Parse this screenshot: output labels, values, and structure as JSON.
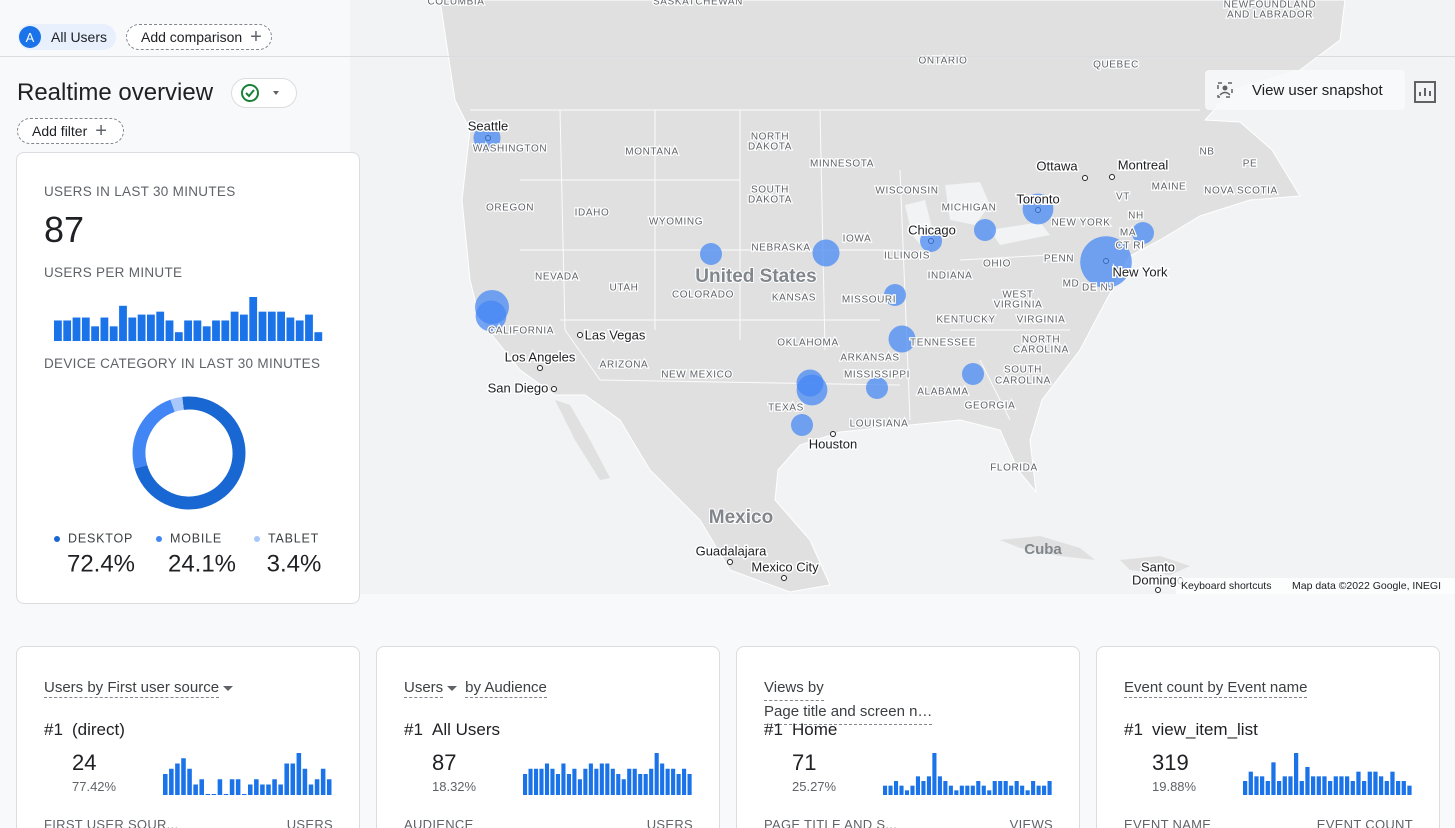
{
  "header": {
    "badge": "A",
    "segment": "All Users",
    "add_comparison": "Add comparison"
  },
  "title": "Realtime overview",
  "add_filter": "Add filter",
  "view_snapshot": "View user snapshot",
  "overview": {
    "users_label": "USERS IN LAST 30 MINUTES",
    "users": 87,
    "per_minute": {
      "type": "bar",
      "title": "USERS PER MINUTE",
      "color": "#1a73e8",
      "values": [
        7,
        7,
        8,
        8,
        5,
        8,
        5,
        12,
        8,
        9,
        9,
        10,
        7,
        3,
        7,
        7,
        5,
        7,
        7,
        10,
        9,
        15,
        10,
        10,
        10,
        8,
        7,
        9,
        3
      ]
    },
    "device": {
      "type": "pie",
      "title": "DEVICE CATEGORY IN LAST 30 MINUTES",
      "categories": [
        "DESKTOP",
        "MOBILE",
        "TABLET"
      ],
      "values": [
        72.4,
        24.1,
        3.4
      ],
      "value_labels": [
        "72.4%",
        "24.1%",
        "3.4%"
      ],
      "colors": [
        "#1967d2",
        "#4285f4",
        "#a8c7fa"
      ]
    }
  },
  "map": {
    "labels": [
      "COLUMBIA",
      "SASKATCHEWAN",
      "NEWFOUNDLAND",
      "AND LABRADOR",
      "ONTARIO",
      "QUEBEC",
      "Seattle",
      "WASHINGTON",
      "MONTANA",
      "NORTH",
      "DAKOTA",
      "MINNESOTA",
      "Ottawa",
      "Montreal",
      "NB",
      "PE",
      "WISCONSIN",
      "SOUTH",
      "DAKOTA",
      "VT",
      "MAINE",
      "NOVA SCOTIA",
      "Toronto",
      "OREGON",
      "IDAHO",
      "MICHIGAN",
      "NH",
      "WYOMING",
      "NEW YORK",
      "Chicago",
      "MA",
      "IOWA",
      "CT RI",
      "NEBRASKA",
      "ILLINOIS",
      "PENN",
      "OHIO",
      "New York",
      "NEVADA",
      "United States",
      "INDIANA",
      "MD",
      "DE NJ",
      "UTAH",
      "COLORADO",
      "WEST",
      "KANSAS",
      "MISSOURI",
      "VIRGINIA",
      "KENTUCKY",
      "VIRGINIA",
      "CALIFORNIA",
      "Las Vegas",
      "NORTH",
      "OKLAHOMA",
      "TENNESSEE",
      "CAROLINA",
      "Los Angeles",
      "ARKANSAS",
      "ARIZONA",
      "SOUTH",
      "NEW MEXICO",
      "MISSISSIPPI",
      "CAROLINA",
      "San Diego",
      "ALABAMA",
      "GEORGIA",
      "TEXAS",
      "LOUISIANA",
      "Houston",
      "FLORIDA",
      "Mexico",
      "Cuba",
      "Guadalajara",
      "Mexico City",
      "Santo",
      "Domingo"
    ],
    "bubbles": {
      "type": "scatter",
      "color": "#4285f4",
      "values": [
        2,
        4,
        3,
        1,
        2,
        1,
        1,
        3,
        1,
        12,
        1,
        2,
        2,
        3,
        1,
        1,
        1
      ]
    },
    "footer": [
      "Keyboard shortcuts",
      "Map data ©2022 Google, INEGI"
    ]
  },
  "cards": [
    {
      "title": [
        "Users by First user source"
      ],
      "rank": "#1",
      "top": "(direct)",
      "count": 24,
      "share": "77.42%",
      "bars": {
        "type": "bar",
        "values": [
          4,
          5,
          6,
          7,
          5,
          2,
          3,
          0,
          0,
          3,
          0,
          3,
          3,
          0,
          2,
          3,
          2,
          2,
          3,
          2,
          6,
          6,
          8,
          5,
          2,
          3,
          5,
          3
        ]
      },
      "columns": [
        "FIRST USER SOUR...",
        "USERS"
      ]
    },
    {
      "title": [
        "Users",
        "by Audience"
      ],
      "rank": "#1",
      "top": "All Users",
      "count": 87,
      "share": "18.32%",
      "bars": {
        "type": "bar",
        "values": [
          4,
          5,
          5,
          5,
          6,
          5,
          4,
          6,
          4,
          5,
          3,
          5,
          6,
          5,
          6,
          6,
          5,
          4,
          3,
          5,
          5,
          4,
          4,
          5,
          8,
          6,
          5,
          5,
          4,
          5,
          4
        ]
      },
      "columns": [
        "AUDIENCE",
        "USERS"
      ]
    },
    {
      "title": [
        "Views by",
        "Page title and screen n…"
      ],
      "rank": "#1",
      "top": "Home",
      "count": 71,
      "share": "25.27%",
      "bars": {
        "type": "bar",
        "values": [
          2,
          2,
          3,
          2,
          1,
          2,
          4,
          3,
          4,
          9,
          4,
          3,
          2,
          1,
          2,
          2,
          2,
          3,
          2,
          1,
          3,
          3,
          3,
          2,
          3,
          2,
          1,
          3,
          2,
          2,
          3
        ]
      },
      "columns": [
        "PAGE TITLE AND S...",
        "VIEWS"
      ]
    },
    {
      "title": [
        "Event count by Event name"
      ],
      "rank": "#1",
      "top": "view_item_list",
      "count": 319,
      "share": "19.88%",
      "bars": {
        "type": "bar",
        "values": [
          3,
          5,
          4,
          4,
          3,
          7,
          3,
          4,
          4,
          9,
          3,
          6,
          4,
          4,
          4,
          3,
          4,
          4,
          4,
          3,
          5,
          3,
          5,
          5,
          4,
          3,
          5,
          3,
          3,
          2
        ]
      },
      "columns": [
        "EVENT NAME",
        "EVENT COUNT"
      ]
    }
  ]
}
